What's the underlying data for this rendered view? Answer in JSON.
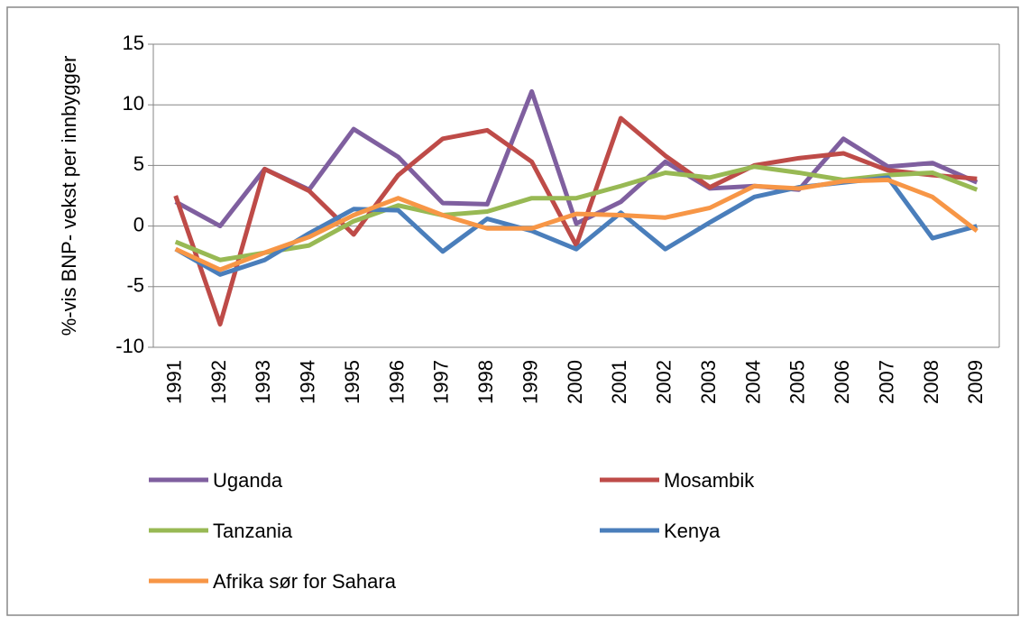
{
  "chart_data": {
    "type": "line",
    "ylabel": "%-vis BNP- vekst per innbygger",
    "categories": [
      "1991",
      "1992",
      "1993",
      "1994",
      "1995",
      "1996",
      "1997",
      "1998",
      "1999",
      "2000",
      "2001",
      "2002",
      "2003",
      "2004",
      "2005",
      "2006",
      "2007",
      "2008",
      "2009"
    ],
    "series": [
      {
        "name": "Uganda",
        "color": "#7f5f9f",
        "values": [
          2.0,
          0,
          4.7,
          3.0,
          8.0,
          5.7,
          1.9,
          1.8,
          11.1,
          0.2,
          2.0,
          5.3,
          3.1,
          3.3,
          3.0,
          7.2,
          4.9,
          5.2,
          3.6
        ]
      },
      {
        "name": "Mosambik",
        "color": "#be4b48",
        "values": [
          2.5,
          -8.1,
          4.7,
          2.9,
          -0.7,
          4.2,
          7.2,
          7.9,
          5.3,
          -1.6,
          8.9,
          5.8,
          3.2,
          5.0,
          5.6,
          6.0,
          4.6,
          4.2,
          3.9
        ]
      },
      {
        "name": "Tanzania",
        "color": "#98b954",
        "values": [
          -1.3,
          -2.8,
          -2.2,
          -1.6,
          0.4,
          1.7,
          0.9,
          1.2,
          2.3,
          2.3,
          3.3,
          4.4,
          4.0,
          4.9,
          4.4,
          3.8,
          4.2,
          4.4,
          3.0
        ]
      },
      {
        "name": "Kenya",
        "color": "#4a7ebb",
        "values": [
          -1.9,
          -4.0,
          -2.8,
          -0.6,
          1.4,
          1.3,
          -2.1,
          0.6,
          -0.4,
          -1.9,
          1.1,
          -1.9,
          0.3,
          2.4,
          3.2,
          3.6,
          4.0,
          -1.0,
          0.0
        ]
      },
      {
        "name": "Afrika sør for Sahara",
        "color": "#f79646",
        "values": [
          -1.9,
          -3.6,
          -2.2,
          -0.9,
          0.9,
          2.3,
          0.9,
          -0.2,
          -0.2,
          1.0,
          0.9,
          0.7,
          1.5,
          3.3,
          3.1,
          3.7,
          3.8,
          2.4,
          -0.4
        ]
      }
    ],
    "ylim": [
      -10,
      15
    ],
    "yticks": [
      -10,
      -5,
      0,
      5,
      10,
      15
    ],
    "grid": true
  }
}
